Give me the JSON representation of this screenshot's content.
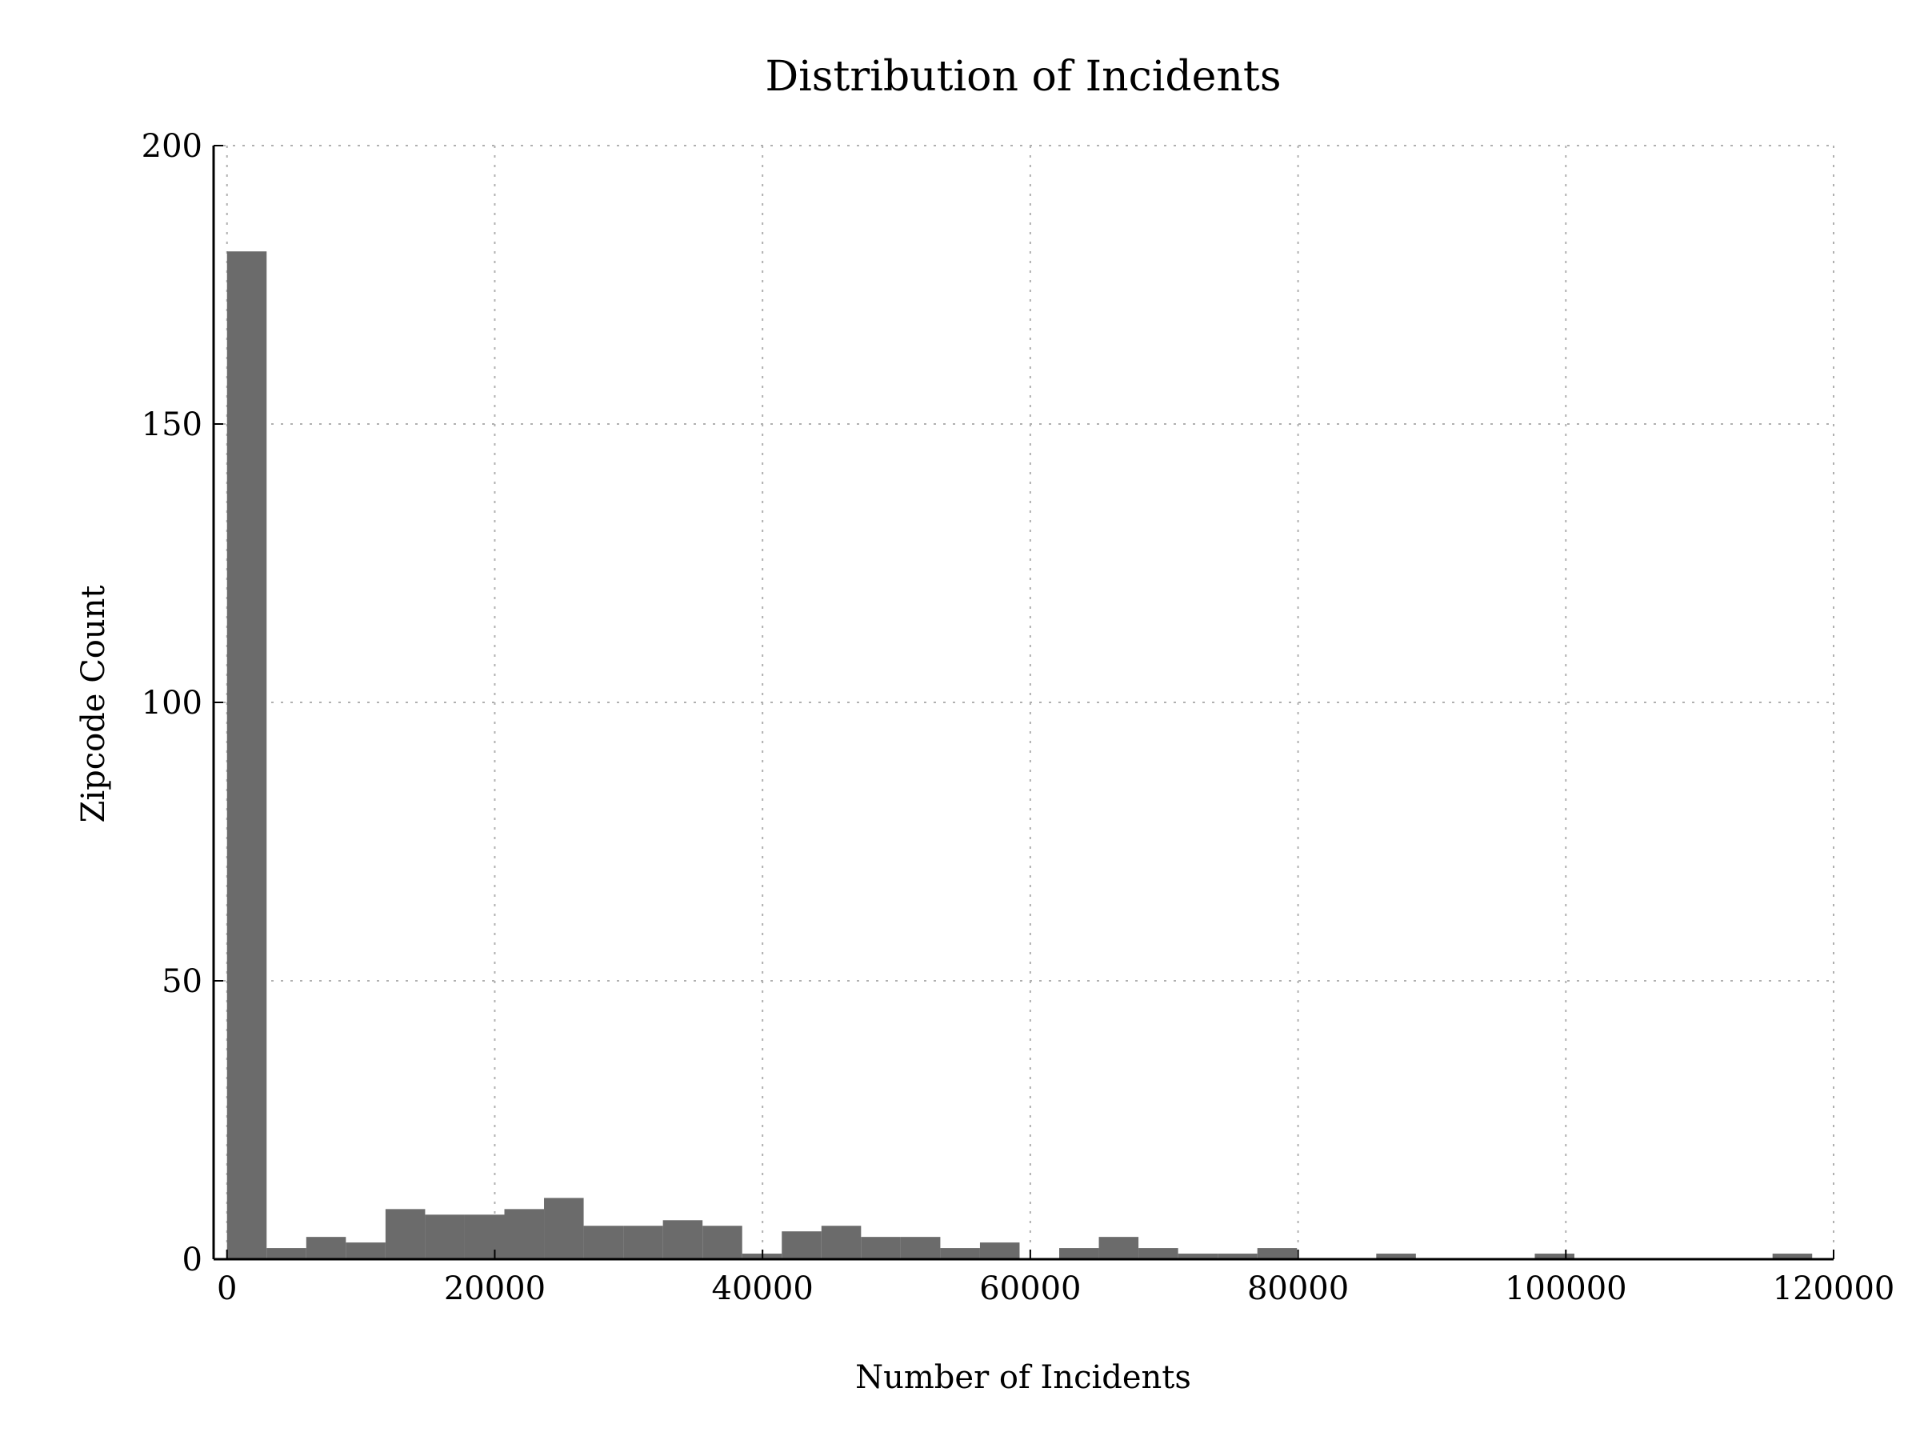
{
  "chart_data": {
    "type": "bar",
    "title": "Distribution of Incidents",
    "xlabel": "Number of Incidents",
    "ylabel": "Zipcode Count",
    "xlim": [
      -1000,
      120000
    ],
    "ylim": [
      0,
      200
    ],
    "xticks": [
      0,
      20000,
      40000,
      60000,
      80000,
      100000,
      120000
    ],
    "yticks": [
      0,
      50,
      100,
      150,
      200
    ],
    "grid": true,
    "bar_color": "#6b6b6b",
    "bins": [
      {
        "start": 0,
        "end": 2960,
        "count": 181
      },
      {
        "start": 2960,
        "end": 5920,
        "count": 2
      },
      {
        "start": 5920,
        "end": 8880,
        "count": 4
      },
      {
        "start": 8880,
        "end": 11840,
        "count": 3
      },
      {
        "start": 11840,
        "end": 14800,
        "count": 9
      },
      {
        "start": 14800,
        "end": 17760,
        "count": 8
      },
      {
        "start": 17760,
        "end": 20720,
        "count": 8
      },
      {
        "start": 20720,
        "end": 23680,
        "count": 9
      },
      {
        "start": 23680,
        "end": 26640,
        "count": 11
      },
      {
        "start": 26640,
        "end": 29600,
        "count": 6
      },
      {
        "start": 29600,
        "end": 32560,
        "count": 6
      },
      {
        "start": 32560,
        "end": 35520,
        "count": 7
      },
      {
        "start": 35520,
        "end": 38480,
        "count": 6
      },
      {
        "start": 38480,
        "end": 41440,
        "count": 1
      },
      {
        "start": 41440,
        "end": 44400,
        "count": 5
      },
      {
        "start": 44400,
        "end": 47360,
        "count": 6
      },
      {
        "start": 47360,
        "end": 50320,
        "count": 4
      },
      {
        "start": 50320,
        "end": 53280,
        "count": 4
      },
      {
        "start": 53280,
        "end": 56240,
        "count": 2
      },
      {
        "start": 56240,
        "end": 59200,
        "count": 3
      },
      {
        "start": 59200,
        "end": 62160,
        "count": 0
      },
      {
        "start": 62160,
        "end": 65120,
        "count": 2
      },
      {
        "start": 65120,
        "end": 68080,
        "count": 4
      },
      {
        "start": 68080,
        "end": 71040,
        "count": 2
      },
      {
        "start": 71040,
        "end": 74000,
        "count": 1
      },
      {
        "start": 74000,
        "end": 76960,
        "count": 1
      },
      {
        "start": 76960,
        "end": 79920,
        "count": 2
      },
      {
        "start": 79920,
        "end": 82880,
        "count": 0
      },
      {
        "start": 82880,
        "end": 85840,
        "count": 0
      },
      {
        "start": 85840,
        "end": 88800,
        "count": 1
      },
      {
        "start": 88800,
        "end": 91760,
        "count": 0
      },
      {
        "start": 91760,
        "end": 94720,
        "count": 0
      },
      {
        "start": 94720,
        "end": 97680,
        "count": 0
      },
      {
        "start": 97680,
        "end": 100640,
        "count": 1
      },
      {
        "start": 100640,
        "end": 103600,
        "count": 0
      },
      {
        "start": 103600,
        "end": 106560,
        "count": 0
      },
      {
        "start": 106560,
        "end": 109520,
        "count": 0
      },
      {
        "start": 109520,
        "end": 112480,
        "count": 0
      },
      {
        "start": 112480,
        "end": 115440,
        "count": 0
      },
      {
        "start": 115440,
        "end": 118400,
        "count": 1
      }
    ]
  }
}
